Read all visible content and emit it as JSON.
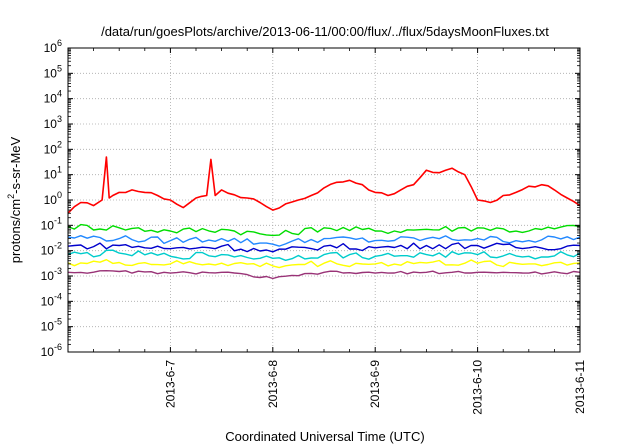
{
  "chart_data": {
    "type": "line",
    "title": "/data/run/goesPlots/archive/2013-06-11/00:00/flux/../flux/5daysMoonFluxes.txt",
    "xlabel": "Coordinated Universal Time (UTC)",
    "ylabel": {
      "base": "protons/cm",
      "sup": "2",
      "rest": "-s-sr-MeV"
    },
    "y_scale": "log",
    "ylim": [
      1e-06,
      1000000.0
    ],
    "y_ticks": [
      {
        "exp": "-6",
        "value": 1e-06
      },
      {
        "exp": "-5",
        "value": 1e-05
      },
      {
        "exp": "-4",
        "value": 0.0001
      },
      {
        "exp": "-3",
        "value": 0.001
      },
      {
        "exp": "-2",
        "value": 0.01
      },
      {
        "exp": "-1",
        "value": 0.1
      },
      {
        "exp": "0",
        "value": 1
      },
      {
        "exp": "1",
        "value": 10
      },
      {
        "exp": "2",
        "value": 100
      },
      {
        "exp": "3",
        "value": 1000.0
      },
      {
        "exp": "4",
        "value": 10000.0
      },
      {
        "exp": "5",
        "value": 100000.0
      },
      {
        "exp": "6",
        "value": 1000000.0
      }
    ],
    "y_tick_base": "10",
    "x_range": [
      "2013-06-06T00:00",
      "2013-06-11T00:00"
    ],
    "x_ticks": [
      {
        "label": "2013-6-7",
        "value": "2013-06-07"
      },
      {
        "label": "2013-6-8",
        "value": "2013-06-08"
      },
      {
        "label": "2013-6-9",
        "value": "2013-06-09"
      },
      {
        "label": "2013-6-10",
        "value": "2013-06-10"
      },
      {
        "label": "2013-6-11",
        "value": "2013-06-11"
      }
    ],
    "grid": true,
    "series": [
      {
        "color": "#ff0000",
        "x": [
          "2013-06-06T00:00",
          "2013-06-06T03:00",
          "2013-06-06T06:00",
          "2013-06-06T08:00",
          "2013-06-06T09:00",
          "2013-06-06T09:40",
          "2013-06-06T10:30",
          "2013-06-06T12:00",
          "2013-06-06T15:00",
          "2013-06-06T18:00",
          "2013-06-06T21:00",
          "2013-06-07T00:00",
          "2013-06-07T03:00",
          "2013-06-07T06:00",
          "2013-06-07T08:30",
          "2013-06-07T09:30",
          "2013-06-07T10:30",
          "2013-06-07T12:00",
          "2013-06-07T15:00",
          "2013-06-07T18:00",
          "2013-06-07T21:00",
          "2013-06-08T00:00",
          "2013-06-08T03:00",
          "2013-06-08T06:00",
          "2013-06-08T09:00",
          "2013-06-08T12:00",
          "2013-06-08T15:00",
          "2013-06-08T18:00",
          "2013-06-08T21:00",
          "2013-06-09T00:00",
          "2013-06-09T03:00",
          "2013-06-09T06:00",
          "2013-06-09T09:00",
          "2013-06-09T12:00",
          "2013-06-09T15:00",
          "2013-06-09T18:00",
          "2013-06-09T21:00",
          "2013-06-10T00:00",
          "2013-06-10T03:00",
          "2013-06-10T06:00",
          "2013-06-10T09:00",
          "2013-06-10T12:00",
          "2013-06-10T15:00",
          "2013-06-10T18:00",
          "2013-06-10T21:00",
          "2013-06-11T00:00"
        ],
        "values": [
          0.3,
          0.8,
          0.6,
          1.0,
          50,
          1.2,
          1.5,
          2.0,
          2.5,
          2.0,
          1.5,
          1.0,
          0.5,
          1.2,
          1.5,
          40,
          1.5,
          2.5,
          1.6,
          1.2,
          0.8,
          0.4,
          0.7,
          1.0,
          1.5,
          3.0,
          5.0,
          6.0,
          4.0,
          2.0,
          1.5,
          2.5,
          4.0,
          15,
          12,
          18,
          10,
          1.0,
          0.8,
          1.5,
          2.0,
          3.5,
          4.0,
          2.5,
          1.2,
          0.6
        ]
      },
      {
        "color": "#00dd00",
        "x": [
          "2013-06-06T00:00",
          "2013-06-06T12:00",
          "2013-06-07T00:00",
          "2013-06-07T12:00",
          "2013-06-08T00:00",
          "2013-06-08T12:00",
          "2013-06-09T00:00",
          "2013-06-09T12:00",
          "2013-06-10T00:00",
          "2013-06-10T12:00",
          "2013-06-11T00:00"
        ],
        "values": [
          0.09,
          0.08,
          0.06,
          0.07,
          0.04,
          0.08,
          0.06,
          0.07,
          0.08,
          0.06,
          0.09
        ]
      },
      {
        "color": "#2288ff",
        "x": [
          "2013-06-06T00:00",
          "2013-06-06T12:00",
          "2013-06-07T00:00",
          "2013-06-07T12:00",
          "2013-06-08T00:00",
          "2013-06-08T12:00",
          "2013-06-09T00:00",
          "2013-06-09T12:00",
          "2013-06-10T00:00",
          "2013-06-10T12:00",
          "2013-06-11T00:00"
        ],
        "values": [
          0.035,
          0.03,
          0.025,
          0.03,
          0.018,
          0.03,
          0.025,
          0.03,
          0.03,
          0.025,
          0.035
        ]
      },
      {
        "color": "#0000cc",
        "x": [
          "2013-06-06T00:00",
          "2013-06-06T12:00",
          "2013-06-07T00:00",
          "2013-06-07T12:00",
          "2013-06-08T00:00",
          "2013-06-08T12:00",
          "2013-06-09T00:00",
          "2013-06-09T12:00",
          "2013-06-10T00:00",
          "2013-06-10T12:00",
          "2013-06-11T00:00"
        ],
        "values": [
          0.015,
          0.016,
          0.012,
          0.015,
          0.009,
          0.015,
          0.013,
          0.016,
          0.016,
          0.013,
          0.016
        ]
      },
      {
        "color": "#00cccc",
        "x": [
          "2013-06-06T00:00",
          "2013-06-06T12:00",
          "2013-06-07T00:00",
          "2013-06-07T12:00",
          "2013-06-08T00:00",
          "2013-06-08T12:00",
          "2013-06-09T00:00",
          "2013-06-09T12:00",
          "2013-06-10T00:00",
          "2013-06-10T12:00",
          "2013-06-11T00:00"
        ],
        "values": [
          0.007,
          0.008,
          0.006,
          0.007,
          0.005,
          0.007,
          0.006,
          0.007,
          0.007,
          0.006,
          0.008
        ]
      },
      {
        "color": "#ffff00",
        "x": [
          "2013-06-06T00:00",
          "2013-06-06T12:00",
          "2013-06-07T00:00",
          "2013-06-07T12:00",
          "2013-06-08T00:00",
          "2013-06-08T12:00",
          "2013-06-09T00:00",
          "2013-06-09T12:00",
          "2013-06-10T00:00",
          "2013-06-10T12:00",
          "2013-06-11T00:00"
        ],
        "values": [
          0.0033,
          0.0034,
          0.003,
          0.0032,
          0.0025,
          0.0032,
          0.003,
          0.0033,
          0.0032,
          0.003,
          0.0033
        ]
      },
      {
        "color": "#993377",
        "x": [
          "2013-06-06T00:00",
          "2013-06-06T12:00",
          "2013-06-07T00:00",
          "2013-06-07T12:00",
          "2013-06-08T00:00",
          "2013-06-08T12:00",
          "2013-06-09T00:00",
          "2013-06-09T12:00",
          "2013-06-10T00:00",
          "2013-06-10T12:00",
          "2013-06-11T00:00"
        ],
        "values": [
          0.0014,
          0.0015,
          0.0013,
          0.0014,
          0.0008,
          0.0014,
          0.0013,
          0.0014,
          0.0014,
          0.0013,
          0.0014
        ]
      }
    ]
  }
}
